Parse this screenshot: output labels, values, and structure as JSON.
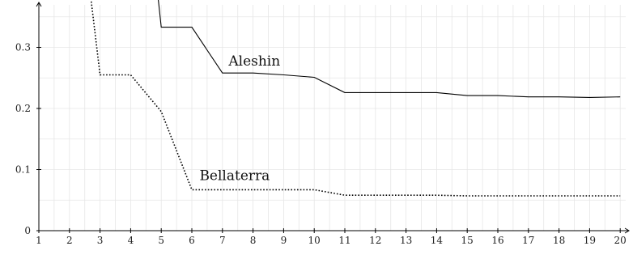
{
  "chart_data": {
    "type": "line",
    "title": "",
    "xlabel": "",
    "ylabel": "",
    "x": [
      1,
      2,
      3,
      4,
      5,
      6,
      7,
      8,
      9,
      10,
      11,
      12,
      13,
      14,
      15,
      16,
      17,
      18,
      19,
      20
    ],
    "xlim": [
      1,
      20.3
    ],
    "ylim": [
      0,
      0.37
    ],
    "x_ticks": [
      1,
      2,
      3,
      4,
      5,
      6,
      7,
      8,
      9,
      10,
      11,
      12,
      13,
      14,
      15,
      16,
      17,
      18,
      19,
      20
    ],
    "x_tick_labels": [
      "1",
      "2",
      "3",
      "4",
      "5",
      "6",
      "7",
      "8",
      "9",
      "10",
      "11",
      "12",
      "13",
      "14",
      "15",
      "16",
      "17",
      "18",
      "19",
      "20"
    ],
    "y_ticks": [
      0,
      0.1,
      0.2,
      0.3
    ],
    "y_tick_labels": [
      "0",
      "0.1",
      "0.2",
      "0.3"
    ],
    "grid": true,
    "legend": "none",
    "series": [
      {
        "name": "Aleshin",
        "style": "solid",
        "color": "#000000",
        "points": [
          [
            4.9,
            0.38
          ],
          [
            5,
            0.333
          ],
          [
            6,
            0.333
          ],
          [
            7,
            0.258
          ],
          [
            8,
            0.258
          ],
          [
            9,
            0.255
          ],
          [
            10,
            0.251
          ],
          [
            11,
            0.226
          ],
          [
            12,
            0.226
          ],
          [
            13,
            0.226
          ],
          [
            14,
            0.226
          ],
          [
            15,
            0.221
          ],
          [
            16,
            0.221
          ],
          [
            17,
            0.219
          ],
          [
            18,
            0.219
          ],
          [
            19,
            0.218
          ],
          [
            20,
            0.219
          ]
        ]
      },
      {
        "name": "Bellaterra",
        "style": "dotted",
        "color": "#000000",
        "points": [
          [
            2.7,
            0.38
          ],
          [
            3,
            0.255
          ],
          [
            4,
            0.255
          ],
          [
            5,
            0.195
          ],
          [
            6,
            0.067
          ],
          [
            7,
            0.067
          ],
          [
            8,
            0.067
          ],
          [
            9,
            0.067
          ],
          [
            10,
            0.067
          ],
          [
            11,
            0.058
          ],
          [
            12,
            0.058
          ],
          [
            13,
            0.058
          ],
          [
            14,
            0.058
          ],
          [
            15,
            0.057
          ],
          [
            16,
            0.057
          ],
          [
            17,
            0.057
          ],
          [
            18,
            0.057
          ],
          [
            19,
            0.057
          ],
          [
            20,
            0.057
          ]
        ]
      }
    ]
  }
}
